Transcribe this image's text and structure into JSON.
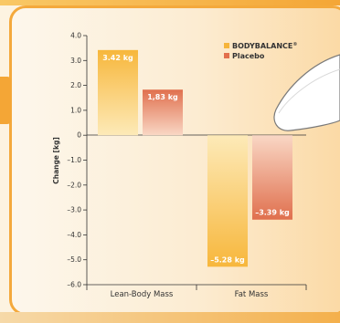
{
  "chart_data": {
    "type": "bar",
    "categories": [
      "Lean-Body Mass",
      "Fat Mass"
    ],
    "series": [
      {
        "name": "BODYBALANCE",
        "name_suffix": "®",
        "values": [
          3.42,
          -5.28
        ],
        "labels": [
          "3.42 kg",
          "–5.28 kg"
        ]
      },
      {
        "name": "Placebo",
        "values": [
          1.83,
          -3.39
        ],
        "labels": [
          "1,83 kg",
          "–3.39 kg"
        ]
      }
    ],
    "ylabel": "Change [kg]",
    "ylim": [
      -6.0,
      4.0
    ],
    "yticks": [
      "4.0",
      "3.0",
      "2.0",
      "1.0",
      "0",
      "–1.0",
      "–2.0",
      "–3.0",
      "–4.0",
      "–5.0",
      "–6.0"
    ],
    "ytick_values": [
      4,
      3,
      2,
      1,
      0,
      -1,
      -2,
      -3,
      -4,
      -5,
      -6
    ],
    "legend_position": "top-right",
    "grid": false,
    "colors": {
      "bodybalance_top": "#f7b73c",
      "bodybalance_bottom": "#fdeab8",
      "placebo_top": "#e0704e",
      "placebo_bottom": "#f9d7c5"
    }
  }
}
